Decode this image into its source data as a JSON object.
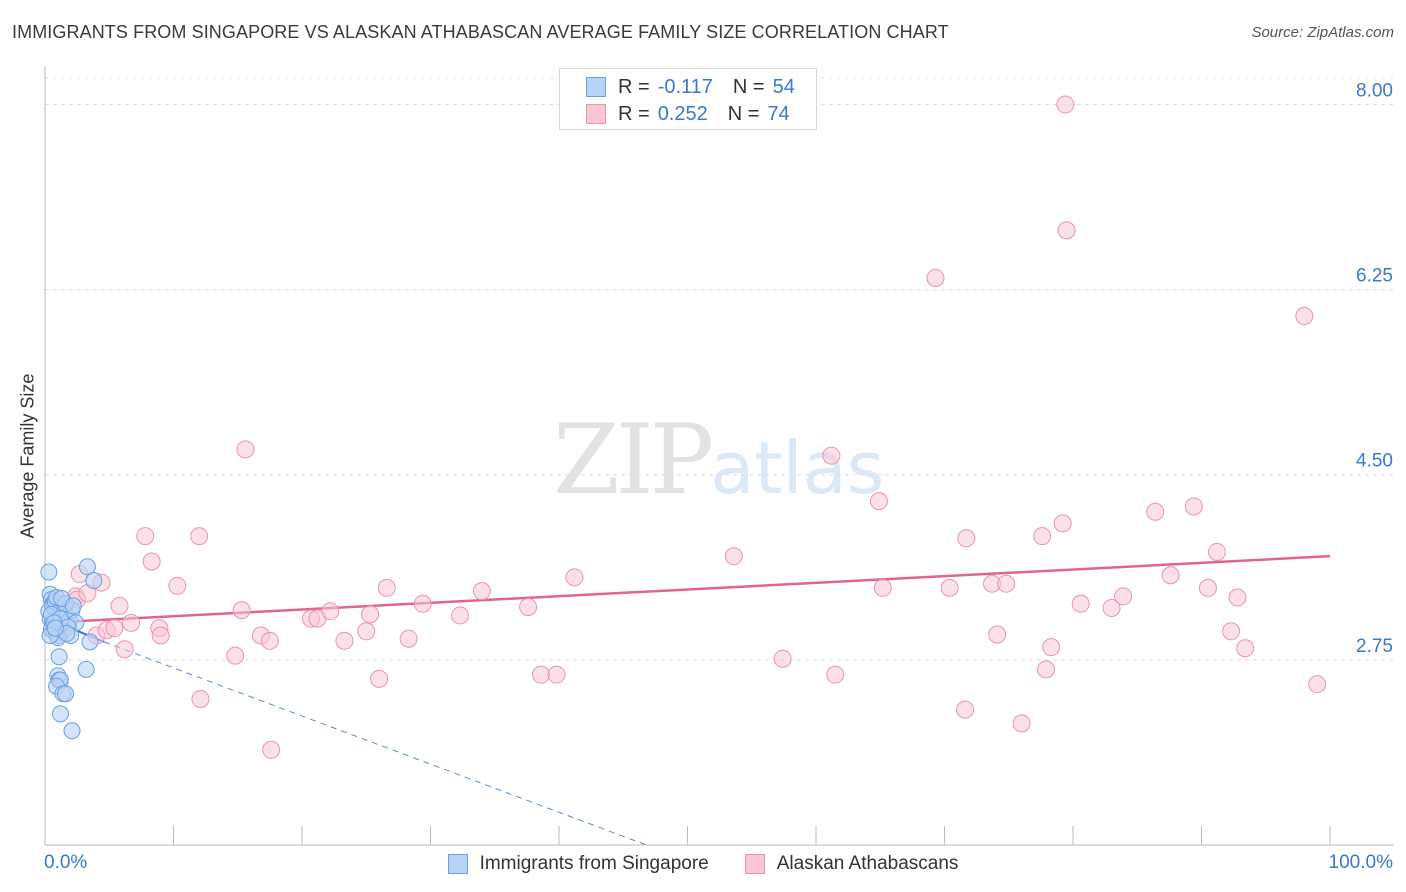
{
  "header": {
    "title": "IMMIGRANTS FROM SINGAPORE VS ALASKAN ATHABASCAN AVERAGE FAMILY SIZE CORRELATION CHART",
    "source": "Source: ZipAtlas.com"
  },
  "watermark": {
    "zip": "ZIP",
    "atlas": "atlas"
  },
  "legend_top": {
    "series1": {
      "r_label": "R =",
      "r_value": "-0.117",
      "n_label": "N =",
      "n_value": "54"
    },
    "series2": {
      "r_label": "R =",
      "r_value": "0.252",
      "n_label": "N =",
      "n_value": "74"
    }
  },
  "colors": {
    "blue_fill": "#b8d3f5",
    "blue_stroke": "#6a9fe0",
    "blue_line": "#2f6fd1",
    "pink_fill": "#f9c6d6",
    "pink_stroke": "#e895b0",
    "pink_line": "#e0648e",
    "tick_text": "#3a78d4",
    "grid": "#dddddd"
  },
  "chart_data": {
    "type": "scatter",
    "title": "IMMIGRANTS FROM SINGAPORE VS ALASKAN ATHABASCAN AVERAGE FAMILY SIZE CORRELATION CHART",
    "xlabel": "",
    "ylabel": "Average Family Size",
    "xlim": [
      0,
      100
    ],
    "ylim": [
      1.0,
      8.25
    ],
    "x_tick_labels": [
      "0.0%",
      "100.0%"
    ],
    "y_ticks": [
      2.75,
      4.5,
      6.25,
      8.0
    ],
    "y_tick_labels": [
      "2.75",
      "4.50",
      "6.25",
      "8.00"
    ],
    "grid": true,
    "legend": "bottom-center",
    "series": [
      {
        "name": "Immigrants from Singapore",
        "color": "blue",
        "R": -0.117,
        "N": 54,
        "trend_solid": [
          [
            0,
            3.15
          ],
          [
            4.6,
            2.92
          ]
        ],
        "trend_dashed": [
          [
            4.6,
            2.92
          ],
          [
            46.8,
            1.0
          ]
        ],
        "points": [
          [
            0.3,
            3.58
          ],
          [
            0.4,
            3.37
          ],
          [
            0.5,
            3.32
          ],
          [
            0.6,
            3.28
          ],
          [
            0.7,
            3.25
          ],
          [
            0.8,
            3.22
          ],
          [
            0.9,
            3.2
          ],
          [
            1.0,
            3.18
          ],
          [
            1.1,
            3.16
          ],
          [
            0.4,
            3.14
          ],
          [
            0.6,
            3.12
          ],
          [
            0.8,
            3.1
          ],
          [
            1.0,
            3.08
          ],
          [
            1.2,
            3.06
          ],
          [
            0.5,
            3.04
          ],
          [
            0.7,
            3.02
          ],
          [
            0.9,
            3.0
          ],
          [
            1.1,
            2.98
          ],
          [
            0.3,
            3.21
          ],
          [
            0.6,
            3.26
          ],
          [
            0.8,
            3.3
          ],
          [
            1.3,
            3.24
          ],
          [
            1.5,
            3.2
          ],
          [
            1.7,
            3.16
          ],
          [
            1.9,
            3.12
          ],
          [
            2.1,
            3.22
          ],
          [
            2.4,
            3.1
          ],
          [
            1.4,
            3.02
          ],
          [
            0.9,
            3.34
          ],
          [
            1.6,
            3.28
          ],
          [
            0.5,
            3.18
          ],
          [
            1.2,
            3.14
          ],
          [
            1.8,
            3.06
          ],
          [
            2.0,
            2.98
          ],
          [
            1.0,
            2.96
          ],
          [
            0.7,
            3.1
          ],
          [
            0.4,
            2.98
          ],
          [
            1.3,
            3.33
          ],
          [
            1.7,
            3.0
          ],
          [
            2.2,
            3.26
          ],
          [
            3.3,
            3.63
          ],
          [
            3.8,
            3.5
          ],
          [
            3.5,
            2.92
          ],
          [
            1.1,
            2.78
          ],
          [
            3.2,
            2.66
          ],
          [
            1.0,
            2.6
          ],
          [
            1.1,
            2.56
          ],
          [
            1.2,
            2.56
          ],
          [
            0.9,
            2.5
          ],
          [
            1.4,
            2.43
          ],
          [
            1.6,
            2.43
          ],
          [
            1.2,
            2.24
          ],
          [
            2.1,
            2.08
          ],
          [
            0.8,
            3.05
          ]
        ]
      },
      {
        "name": "Alaskan Athabascans",
        "color": "pink",
        "R": 0.252,
        "N": 74,
        "trend": [
          [
            0,
            3.1
          ],
          [
            100,
            3.73
          ]
        ],
        "points": [
          [
            1.3,
            3.28
          ],
          [
            2.4,
            3.35
          ],
          [
            2.5,
            3.32
          ],
          [
            2.7,
            3.56
          ],
          [
            3.3,
            3.38
          ],
          [
            4.0,
            2.98
          ],
          [
            4.4,
            3.48
          ],
          [
            4.8,
            3.03
          ],
          [
            5.4,
            3.05
          ],
          [
            5.8,
            3.26
          ],
          [
            6.2,
            2.85
          ],
          [
            6.7,
            3.1
          ],
          [
            7.8,
            3.92
          ],
          [
            8.3,
            3.68
          ],
          [
            8.9,
            3.05
          ],
          [
            9.0,
            2.98
          ],
          [
            10.3,
            3.45
          ],
          [
            12.0,
            3.92
          ],
          [
            12.1,
            2.38
          ],
          [
            14.8,
            2.79
          ],
          [
            15.3,
            3.22
          ],
          [
            15.6,
            4.74
          ],
          [
            16.8,
            2.98
          ],
          [
            17.5,
            2.93
          ],
          [
            17.6,
            1.9
          ],
          [
            20.7,
            3.14
          ],
          [
            21.2,
            3.14
          ],
          [
            22.2,
            3.21
          ],
          [
            23.3,
            2.93
          ],
          [
            25.0,
            3.02
          ],
          [
            25.3,
            3.18
          ],
          [
            26.0,
            2.57
          ],
          [
            26.6,
            3.43
          ],
          [
            28.3,
            2.95
          ],
          [
            29.4,
            3.28
          ],
          [
            32.3,
            3.17
          ],
          [
            37.6,
            3.25
          ],
          [
            38.6,
            2.61
          ],
          [
            39.8,
            2.61
          ],
          [
            41.2,
            3.53
          ],
          [
            53.6,
            3.73
          ],
          [
            57.4,
            2.76
          ],
          [
            61.2,
            4.68
          ],
          [
            61.5,
            2.61
          ],
          [
            64.9,
            4.25
          ],
          [
            65.2,
            3.43
          ],
          [
            69.3,
            6.36
          ],
          [
            70.4,
            3.43
          ],
          [
            71.6,
            2.28
          ],
          [
            71.7,
            3.9
          ],
          [
            73.7,
            3.47
          ],
          [
            74.1,
            2.99
          ],
          [
            74.8,
            3.47
          ],
          [
            76.0,
            2.15
          ],
          [
            77.6,
            3.92
          ],
          [
            77.9,
            2.66
          ],
          [
            78.3,
            2.87
          ],
          [
            79.2,
            4.04
          ],
          [
            79.4,
            8.0
          ],
          [
            79.5,
            6.81
          ],
          [
            80.6,
            3.28
          ],
          [
            83.0,
            3.24
          ],
          [
            83.9,
            3.35
          ],
          [
            86.4,
            4.15
          ],
          [
            87.6,
            3.55
          ],
          [
            89.4,
            4.2
          ],
          [
            90.5,
            3.43
          ],
          [
            91.2,
            3.77
          ],
          [
            92.3,
            3.02
          ],
          [
            92.8,
            3.34
          ],
          [
            93.4,
            2.86
          ],
          [
            98.0,
            6.0
          ],
          [
            99.0,
            2.52
          ],
          [
            34.0,
            3.4
          ]
        ]
      }
    ]
  },
  "legend_bottom": {
    "item1": "Immigrants from Singapore",
    "item2": "Alaskan Athabascans"
  }
}
